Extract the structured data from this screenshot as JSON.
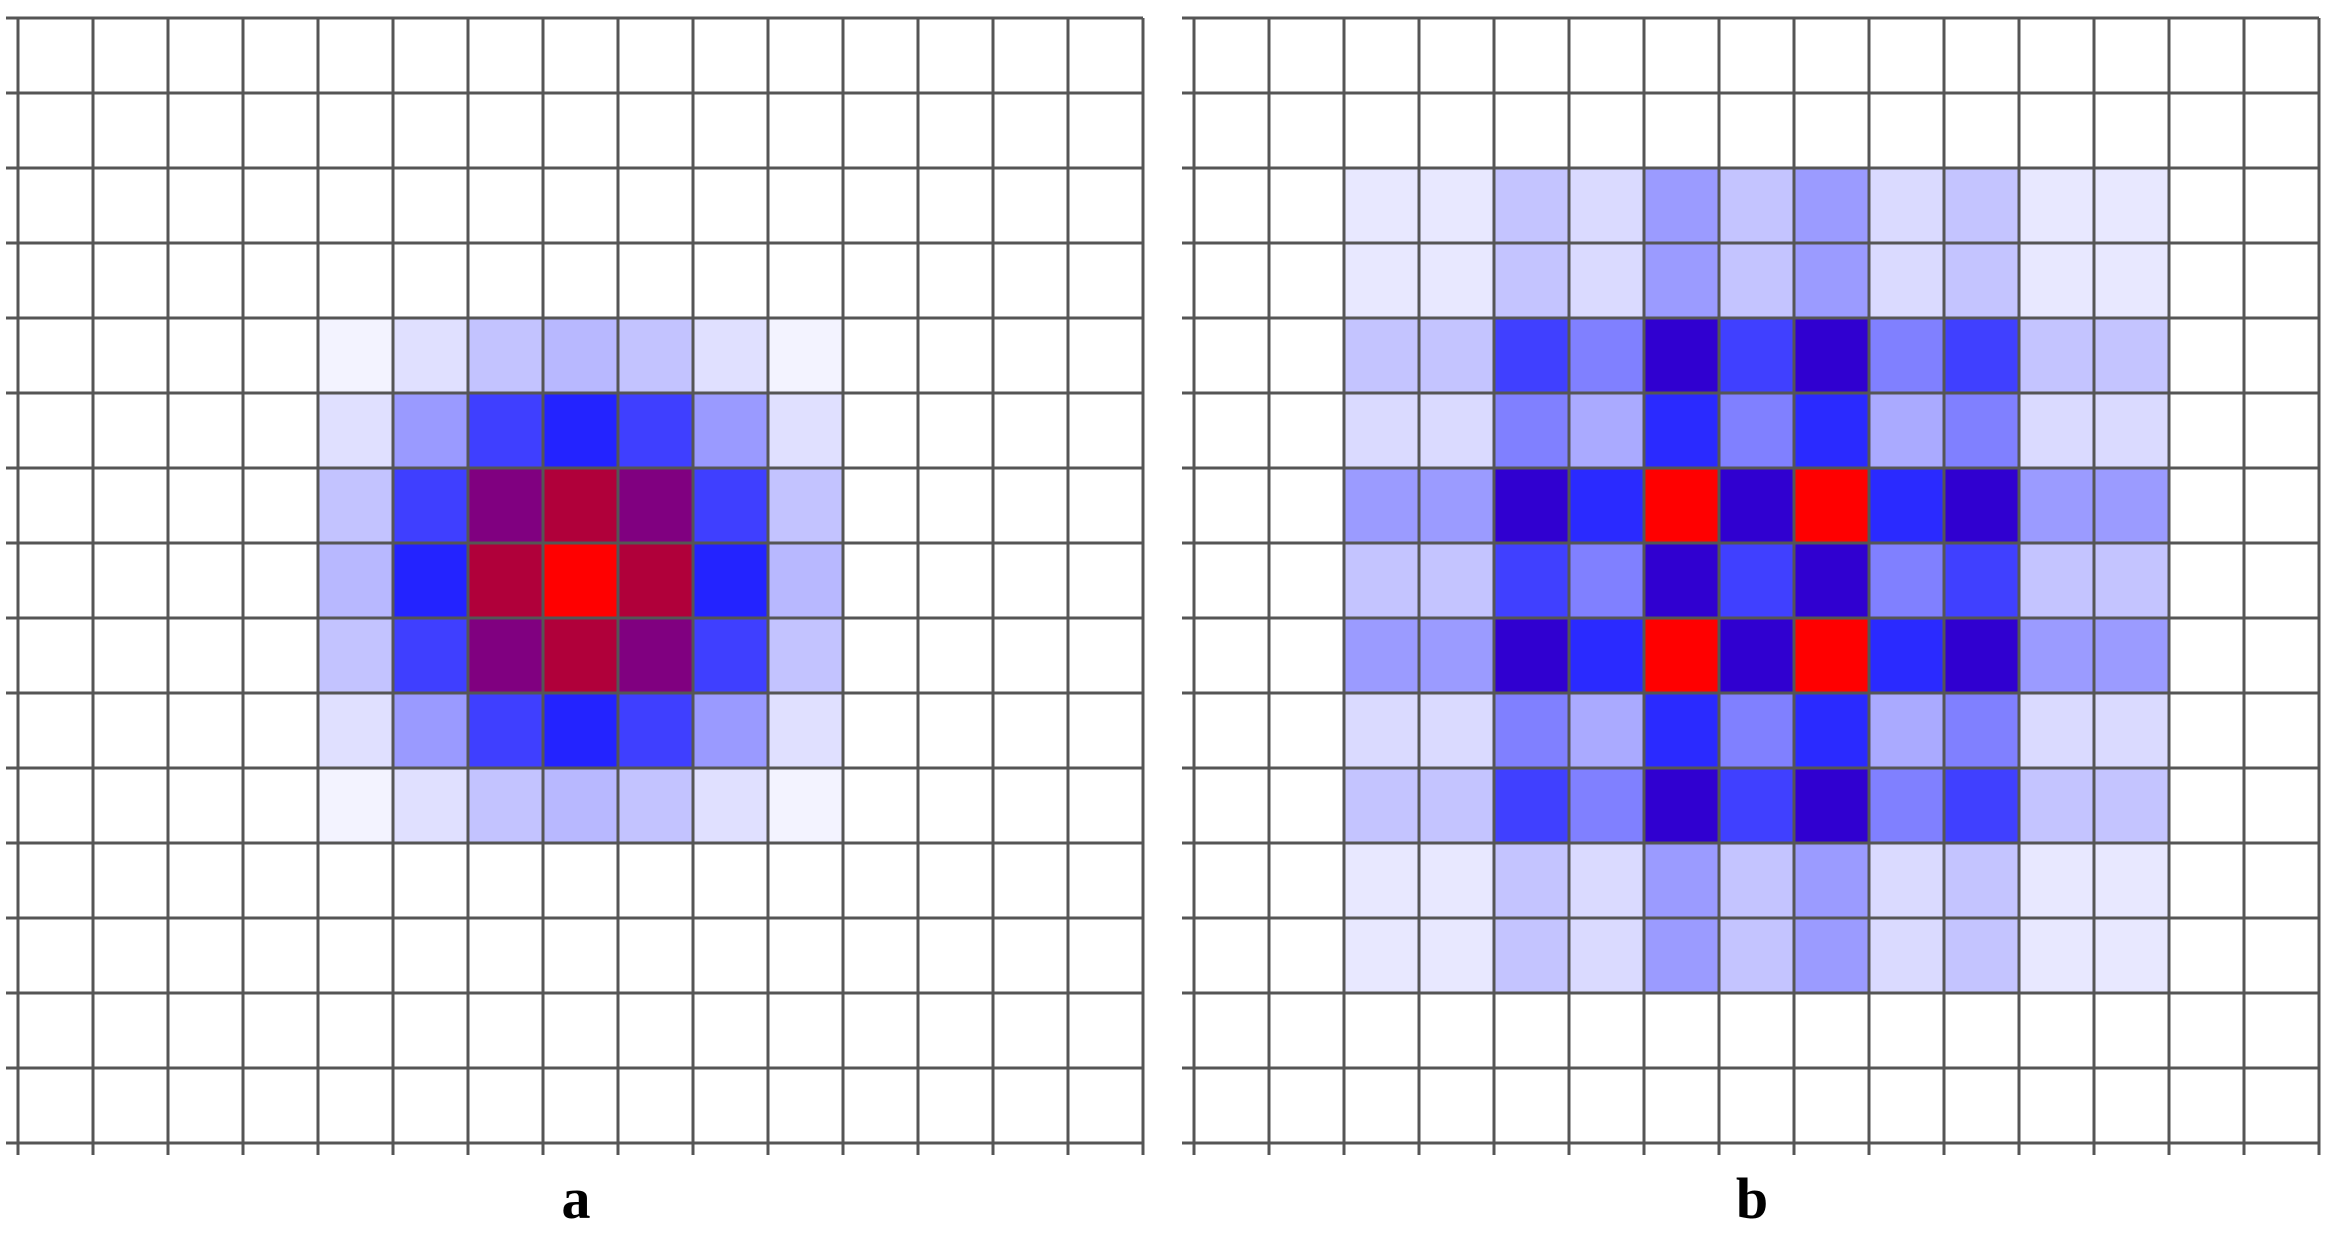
{
  "grid": {
    "rows": 15,
    "cols": 15,
    "line_color": "#555555"
  },
  "panels": [
    {
      "label": "a",
      "cells": [
        [
          0,
          0,
          0,
          0,
          0,
          0,
          0,
          0,
          0,
          0,
          0,
          0,
          0,
          0,
          0
        ],
        [
          0,
          0,
          0,
          0,
          0,
          0,
          0,
          0,
          0,
          0,
          0,
          0,
          0,
          0,
          0
        ],
        [
          0,
          0,
          0,
          0,
          0,
          0,
          0,
          0,
          0,
          0,
          0,
          0,
          0,
          0,
          0
        ],
        [
          0,
          0,
          0,
          0,
          0,
          0,
          0,
          0,
          0,
          0,
          0,
          0,
          0,
          0,
          0
        ],
        [
          0,
          0,
          0,
          0,
          "#f3f3ff",
          "#e0e0ff",
          "#c3c3ff",
          "#b8b8ff",
          "#c3c3ff",
          "#e0e0ff",
          "#f3f3ff",
          0,
          0,
          0,
          0
        ],
        [
          0,
          0,
          0,
          0,
          "#e0e0ff",
          "#9a9aff",
          "#3f3fff",
          "#2323ff",
          "#3f3fff",
          "#9a9aff",
          "#e0e0ff",
          0,
          0,
          0,
          0
        ],
        [
          0,
          0,
          0,
          0,
          "#c3c3ff",
          "#3f3fff",
          "#800080",
          "#b0003a",
          "#800080",
          "#3f3fff",
          "#c3c3ff",
          0,
          0,
          0,
          0
        ],
        [
          0,
          0,
          0,
          0,
          "#b8b8ff",
          "#2323ff",
          "#b0003a",
          "#ff0000",
          "#b0003a",
          "#2323ff",
          "#b8b8ff",
          0,
          0,
          0,
          0
        ],
        [
          0,
          0,
          0,
          0,
          "#c3c3ff",
          "#3f3fff",
          "#800080",
          "#b0003a",
          "#800080",
          "#3f3fff",
          "#c3c3ff",
          0,
          0,
          0,
          0
        ],
        [
          0,
          0,
          0,
          0,
          "#e0e0ff",
          "#9a9aff",
          "#3f3fff",
          "#2323ff",
          "#3f3fff",
          "#9a9aff",
          "#e0e0ff",
          0,
          0,
          0,
          0
        ],
        [
          0,
          0,
          0,
          0,
          "#f3f3ff",
          "#e0e0ff",
          "#c3c3ff",
          "#b8b8ff",
          "#c3c3ff",
          "#e0e0ff",
          "#f3f3ff",
          0,
          0,
          0,
          0
        ],
        [
          0,
          0,
          0,
          0,
          0,
          0,
          0,
          0,
          0,
          0,
          0,
          0,
          0,
          0,
          0
        ],
        [
          0,
          0,
          0,
          0,
          0,
          0,
          0,
          0,
          0,
          0,
          0,
          0,
          0,
          0,
          0
        ],
        [
          0,
          0,
          0,
          0,
          0,
          0,
          0,
          0,
          0,
          0,
          0,
          0,
          0,
          0,
          0
        ],
        [
          0,
          0,
          0,
          0,
          0,
          0,
          0,
          0,
          0,
          0,
          0,
          0,
          0,
          0,
          0
        ]
      ]
    },
    {
      "label": "b",
      "cells": [
        [
          0,
          0,
          0,
          0,
          0,
          0,
          0,
          0,
          0,
          0,
          0,
          0,
          0,
          0,
          0
        ],
        [
          0,
          0,
          0,
          0,
          0,
          0,
          0,
          0,
          0,
          0,
          0,
          0,
          0,
          0,
          0
        ],
        [
          0,
          0,
          "#e8e8ff",
          "#e8e8ff",
          "#c4c4ff",
          "#dadaff",
          "#9b9bff",
          "#c4c4ff",
          "#9b9bff",
          "#dadaff",
          "#c4c4ff",
          "#e8e8ff",
          "#e8e8ff",
          0,
          0
        ],
        [
          0,
          0,
          "#e8e8ff",
          "#e8e8ff",
          "#c4c4ff",
          "#dadaff",
          "#9b9bff",
          "#c4c4ff",
          "#9b9bff",
          "#dadaff",
          "#c4c4ff",
          "#e8e8ff",
          "#e8e8ff",
          0,
          0
        ],
        [
          0,
          0,
          "#c4c4ff",
          "#c4c4ff",
          "#4040ff",
          "#8080ff",
          "#3000d0",
          "#4040ff",
          "#3000d0",
          "#8080ff",
          "#4040ff",
          "#c4c4ff",
          "#c4c4ff",
          0,
          0
        ],
        [
          0,
          0,
          "#dadaff",
          "#dadaff",
          "#8080ff",
          "#aaaaff",
          "#2a2aff",
          "#8080ff",
          "#2a2aff",
          "#aaaaff",
          "#8080ff",
          "#dadaff",
          "#dadaff",
          0,
          0
        ],
        [
          0,
          0,
          "#9b9bff",
          "#9b9bff",
          "#3000d0",
          "#2a2aff",
          "#ff0000",
          "#3000d0",
          "#ff0000",
          "#2a2aff",
          "#3000d0",
          "#9b9bff",
          "#9b9bff",
          0,
          0
        ],
        [
          0,
          0,
          "#c4c4ff",
          "#c4c4ff",
          "#4040ff",
          "#8080ff",
          "#3000d0",
          "#4040ff",
          "#3000d0",
          "#8080ff",
          "#4040ff",
          "#c4c4ff",
          "#c4c4ff",
          0,
          0
        ],
        [
          0,
          0,
          "#9b9bff",
          "#9b9bff",
          "#3000d0",
          "#2a2aff",
          "#ff0000",
          "#3000d0",
          "#ff0000",
          "#2a2aff",
          "#3000d0",
          "#9b9bff",
          "#9b9bff",
          0,
          0
        ],
        [
          0,
          0,
          "#dadaff",
          "#dadaff",
          "#8080ff",
          "#aaaaff",
          "#2a2aff",
          "#8080ff",
          "#2a2aff",
          "#aaaaff",
          "#8080ff",
          "#dadaff",
          "#dadaff",
          0,
          0
        ],
        [
          0,
          0,
          "#c4c4ff",
          "#c4c4ff",
          "#4040ff",
          "#8080ff",
          "#3000d0",
          "#4040ff",
          "#3000d0",
          "#8080ff",
          "#4040ff",
          "#c4c4ff",
          "#c4c4ff",
          0,
          0
        ],
        [
          0,
          0,
          "#e8e8ff",
          "#e8e8ff",
          "#c4c4ff",
          "#dadaff",
          "#9b9bff",
          "#c4c4ff",
          "#9b9bff",
          "#dadaff",
          "#c4c4ff",
          "#e8e8ff",
          "#e8e8ff",
          0,
          0
        ],
        [
          0,
          0,
          "#e8e8ff",
          "#e8e8ff",
          "#c4c4ff",
          "#dadaff",
          "#9b9bff",
          "#c4c4ff",
          "#9b9bff",
          "#dadaff",
          "#c4c4ff",
          "#e8e8ff",
          "#e8e8ff",
          0,
          0
        ],
        [
          0,
          0,
          0,
          0,
          0,
          0,
          0,
          0,
          0,
          0,
          0,
          0,
          0,
          0,
          0
        ],
        [
          0,
          0,
          0,
          0,
          0,
          0,
          0,
          0,
          0,
          0,
          0,
          0,
          0,
          0,
          0
        ]
      ]
    }
  ]
}
